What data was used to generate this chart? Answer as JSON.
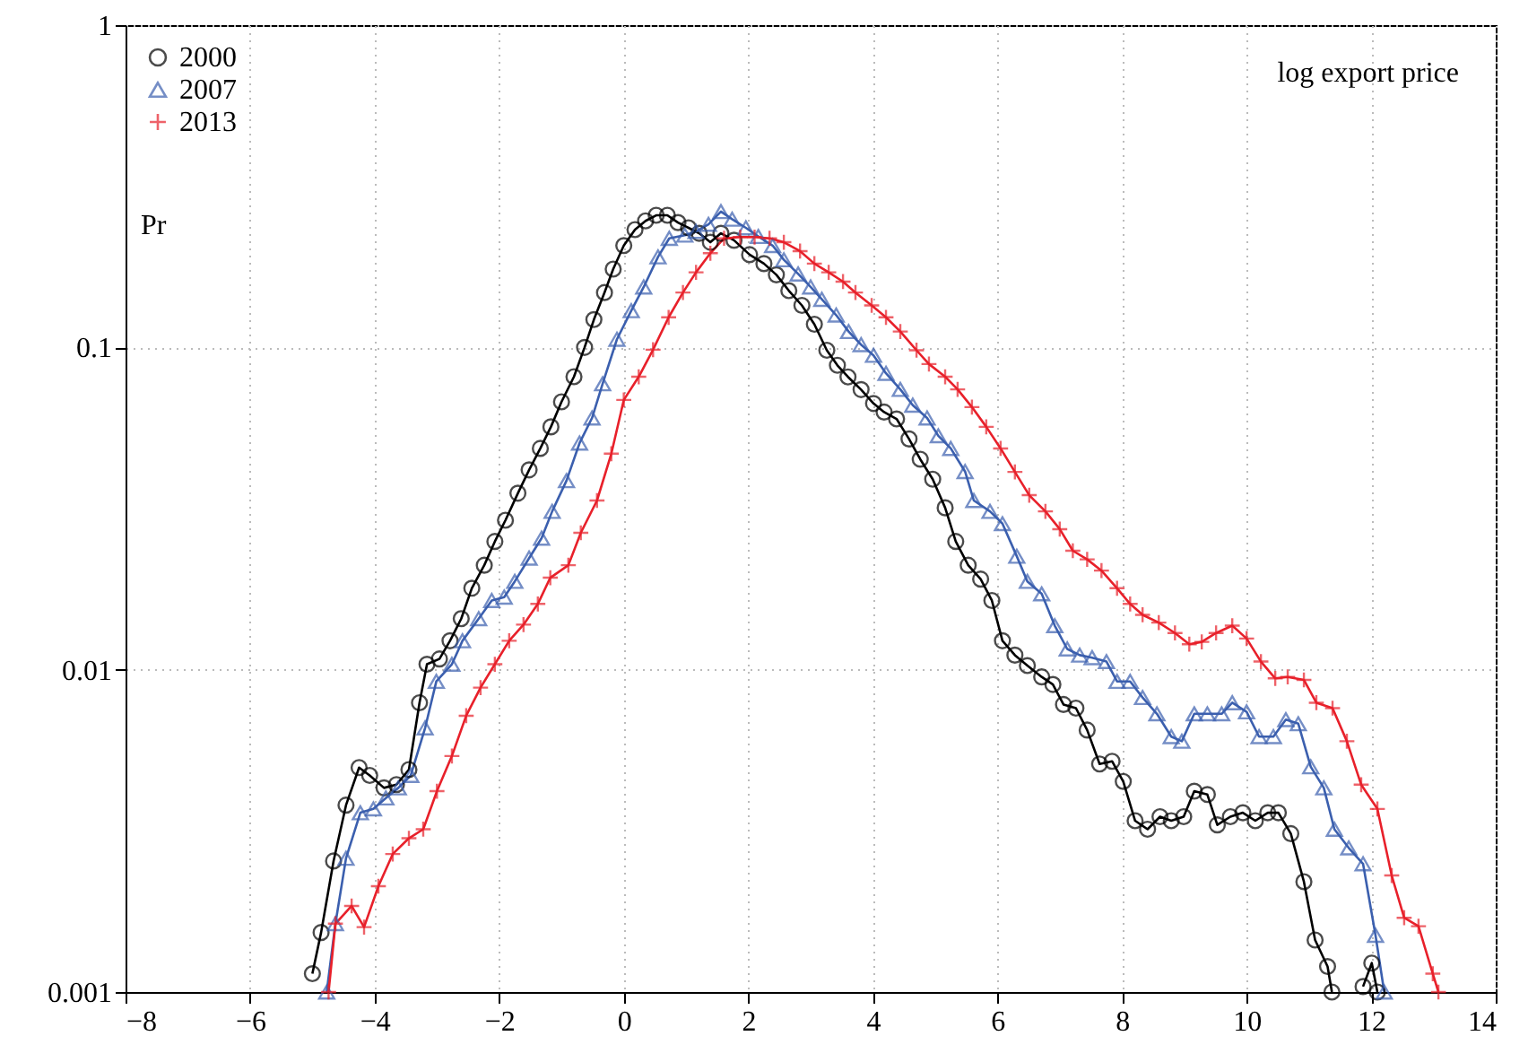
{
  "chart_data": {
    "type": "line",
    "xlabel": "log export price",
    "ylabel": "Pr",
    "xlim": [
      -8,
      14
    ],
    "xticks": [
      -8,
      -6,
      -4,
      -2,
      0,
      2,
      4,
      6,
      8,
      10,
      12,
      14
    ],
    "ylim": [
      0.001,
      1
    ],
    "yticks": [
      0.001,
      0.01,
      0.1,
      1
    ],
    "log": true,
    "grid": true,
    "legend": "top left",
    "line_style": "solid",
    "series": [
      {
        "name": "2000",
        "color": "#000000",
        "marker": "circle",
        "x": [
          -5.0,
          -4.86,
          -4.66,
          -4.46,
          -4.25,
          -4.08,
          -3.85,
          -3.65,
          -3.45,
          -3.28,
          -3.16,
          -2.96,
          -2.79,
          -2.61,
          -2.44,
          -2.24,
          -2.07,
          -1.9,
          -1.7,
          -1.52,
          -1.34,
          -1.17,
          -1.0,
          -0.8,
          -0.63,
          -0.48,
          -0.31,
          -0.17,
          0.0,
          0.18,
          0.35,
          0.52,
          0.7,
          0.87,
          1.04,
          1.21,
          1.39,
          1.56,
          1.77,
          2.02,
          2.25,
          2.45,
          2.65,
          2.86,
          3.06,
          3.26,
          3.43,
          3.6,
          3.81,
          4.01,
          4.18,
          4.38,
          4.58,
          4.76,
          4.96,
          5.16,
          5.33,
          5.53,
          5.73,
          5.91,
          6.08,
          6.28,
          6.48,
          6.71,
          6.89,
          7.06,
          7.26,
          7.44,
          7.64,
          7.84,
          8.02,
          8.21,
          8.41,
          8.61,
          8.79,
          8.99,
          9.16,
          9.37,
          9.53,
          9.74,
          9.94,
          10.14,
          10.34,
          10.51,
          10.71,
          10.92,
          11.1,
          11.3,
          11.37,
          11.6,
          11.87,
          12.01,
          12.1
        ],
        "values": [
          0.00114,
          0.00153,
          0.00255,
          0.0038,
          0.00497,
          0.0047,
          0.0043,
          0.0044,
          0.0049,
          0.0079,
          0.0104,
          0.0108,
          0.0123,
          0.0144,
          0.0179,
          0.0211,
          0.025,
          0.0291,
          0.0353,
          0.0417,
          0.0486,
          0.0567,
          0.0678,
          0.0811,
          0.1,
          0.122,
          0.148,
          0.175,
          0.207,
          0.232,
          0.247,
          0.257,
          0.257,
          0.244,
          0.235,
          0.226,
          0.212,
          0.226,
          0.215,
          0.194,
          0.182,
          0.168,
          0.15,
          0.135,
          0.118,
          0.098,
          0.088,
          0.081,
          0.074,
          0.067,
          0.063,
          0.06,
          0.052,
          0.045,
          0.039,
          0.0318,
          0.025,
          0.0211,
          0.0191,
          0.0164,
          0.0123,
          0.0111,
          0.0103,
          0.0095,
          0.009,
          0.0078,
          0.0076,
          0.0065,
          0.0051,
          0.0052,
          0.0045,
          0.0034,
          0.0032,
          0.0035,
          0.0034,
          0.0035,
          0.0042,
          0.0041,
          0.0033,
          0.0035,
          0.0036,
          0.0034,
          0.0036,
          0.0036,
          0.0031,
          0.0022,
          0.00145,
          0.0012,
          0.001,
          null,
          0.00104,
          0.00123,
          0.001
        ]
      },
      {
        "name": "2007",
        "color": "#3b5fae",
        "marker": "triangle",
        "x": [
          -4.77,
          -4.63,
          -4.46,
          -4.23,
          -4.02,
          -3.82,
          -3.62,
          -3.42,
          -3.19,
          -3.01,
          -2.76,
          -2.59,
          -2.33,
          -2.12,
          -1.92,
          -1.75,
          -1.52,
          -1.32,
          -1.15,
          -0.92,
          -0.71,
          -0.51,
          -0.34,
          -0.11,
          0.12,
          0.32,
          0.55,
          0.73,
          0.98,
          1.16,
          1.36,
          1.56,
          1.74,
          1.96,
          2.16,
          2.39,
          2.57,
          2.8,
          3.0,
          3.18,
          3.41,
          3.61,
          3.81,
          4.01,
          4.21,
          4.44,
          4.64,
          4.87,
          5.05,
          5.25,
          5.48,
          5.62,
          5.88,
          6.08,
          6.31,
          6.48,
          6.71,
          6.92,
          7.12,
          7.32,
          7.52,
          7.75,
          7.92,
          8.13,
          8.33,
          8.56,
          8.79,
          8.96,
          9.16,
          9.37,
          9.6,
          9.77,
          10.0,
          10.2,
          10.43,
          10.63,
          10.83,
          11.03,
          11.24,
          11.41,
          11.64,
          11.87,
          12.07,
          12.21
        ],
        "values": [
          0.001,
          0.00163,
          0.0026,
          0.0036,
          0.0037,
          0.004,
          0.0043,
          0.0047,
          0.0066,
          0.0092,
          0.0104,
          0.0123,
          0.0144,
          0.0164,
          0.0168,
          0.0188,
          0.0222,
          0.0256,
          0.031,
          0.0386,
          0.0505,
          0.0604,
          0.0771,
          0.106,
          0.13,
          0.154,
          0.191,
          0.218,
          0.223,
          0.229,
          0.241,
          0.264,
          0.25,
          0.235,
          0.221,
          0.207,
          0.187,
          0.169,
          0.154,
          0.141,
          0.126,
          0.112,
          0.102,
          0.0945,
          0.0831,
          0.0741,
          0.0662,
          0.0604,
          0.0532,
          0.0486,
          0.0412,
          0.0335,
          0.031,
          0.0284,
          0.0225,
          0.0188,
          0.0172,
          0.0137,
          0.0116,
          0.0111,
          0.0109,
          0.0106,
          0.0092,
          0.0092,
          0.0082,
          0.0073,
          0.0062,
          0.006,
          0.0073,
          0.0073,
          0.0073,
          0.0079,
          0.0074,
          0.0062,
          0.0062,
          0.007,
          0.0068,
          0.005,
          0.0043,
          0.0032,
          0.0028,
          0.0025,
          0.0015,
          0.001
        ]
      },
      {
        "name": "2013",
        "color": "#e8202a",
        "marker": "cross",
        "x": [
          -4.74,
          -4.63,
          -4.37,
          -4.17,
          -3.94,
          -3.71,
          -3.45,
          -3.22,
          -3.0,
          -2.76,
          -2.53,
          -2.3,
          -2.07,
          -1.84,
          -1.61,
          -1.38,
          -1.18,
          -0.89,
          -0.69,
          -0.43,
          -0.2,
          0.0,
          0.24,
          0.47,
          0.72,
          0.95,
          1.16,
          1.39,
          1.61,
          1.87,
          2.1,
          2.34,
          2.57,
          2.83,
          3.06,
          3.29,
          3.52,
          3.72,
          3.98,
          4.21,
          4.44,
          4.7,
          4.9,
          5.16,
          5.36,
          5.59,
          5.82,
          6.05,
          6.28,
          6.51,
          6.77,
          7.0,
          7.21,
          7.44,
          7.67,
          7.92,
          8.13,
          8.33,
          8.59,
          8.85,
          9.08,
          9.28,
          9.51,
          9.77,
          10.0,
          10.23,
          10.46,
          10.66,
          10.92,
          11.12,
          11.38,
          11.61,
          11.84,
          12.1,
          12.33,
          12.53,
          12.76,
          12.99,
          13.08
        ],
        "values": [
          0.001,
          0.00163,
          0.00185,
          0.00159,
          0.00213,
          0.00268,
          0.003,
          0.0032,
          0.0042,
          0.0054,
          0.0072,
          0.0088,
          0.0104,
          0.0123,
          0.0138,
          0.016,
          0.0193,
          0.0211,
          0.0266,
          0.0335,
          0.0468,
          0.0687,
          0.0811,
          0.0984,
          0.124,
          0.148,
          0.171,
          0.196,
          0.218,
          0.22,
          0.22,
          0.218,
          0.212,
          0.199,
          0.182,
          0.171,
          0.16,
          0.148,
          0.135,
          0.124,
          0.112,
          0.098,
          0.0888,
          0.0811,
          0.0741,
          0.0653,
          0.0567,
          0.0486,
          0.0411,
          0.0348,
          0.031,
          0.0273,
          0.0234,
          0.022,
          0.0203,
          0.0179,
          0.016,
          0.0148,
          0.014,
          0.013,
          0.012,
          0.0122,
          0.013,
          0.0137,
          0.0125,
          0.0106,
          0.0094,
          0.0095,
          0.0093,
          0.0079,
          0.0076,
          0.006,
          0.0044,
          0.0037,
          0.0023,
          0.0017,
          0.0016,
          0.00114,
          0.001
        ]
      }
    ]
  }
}
